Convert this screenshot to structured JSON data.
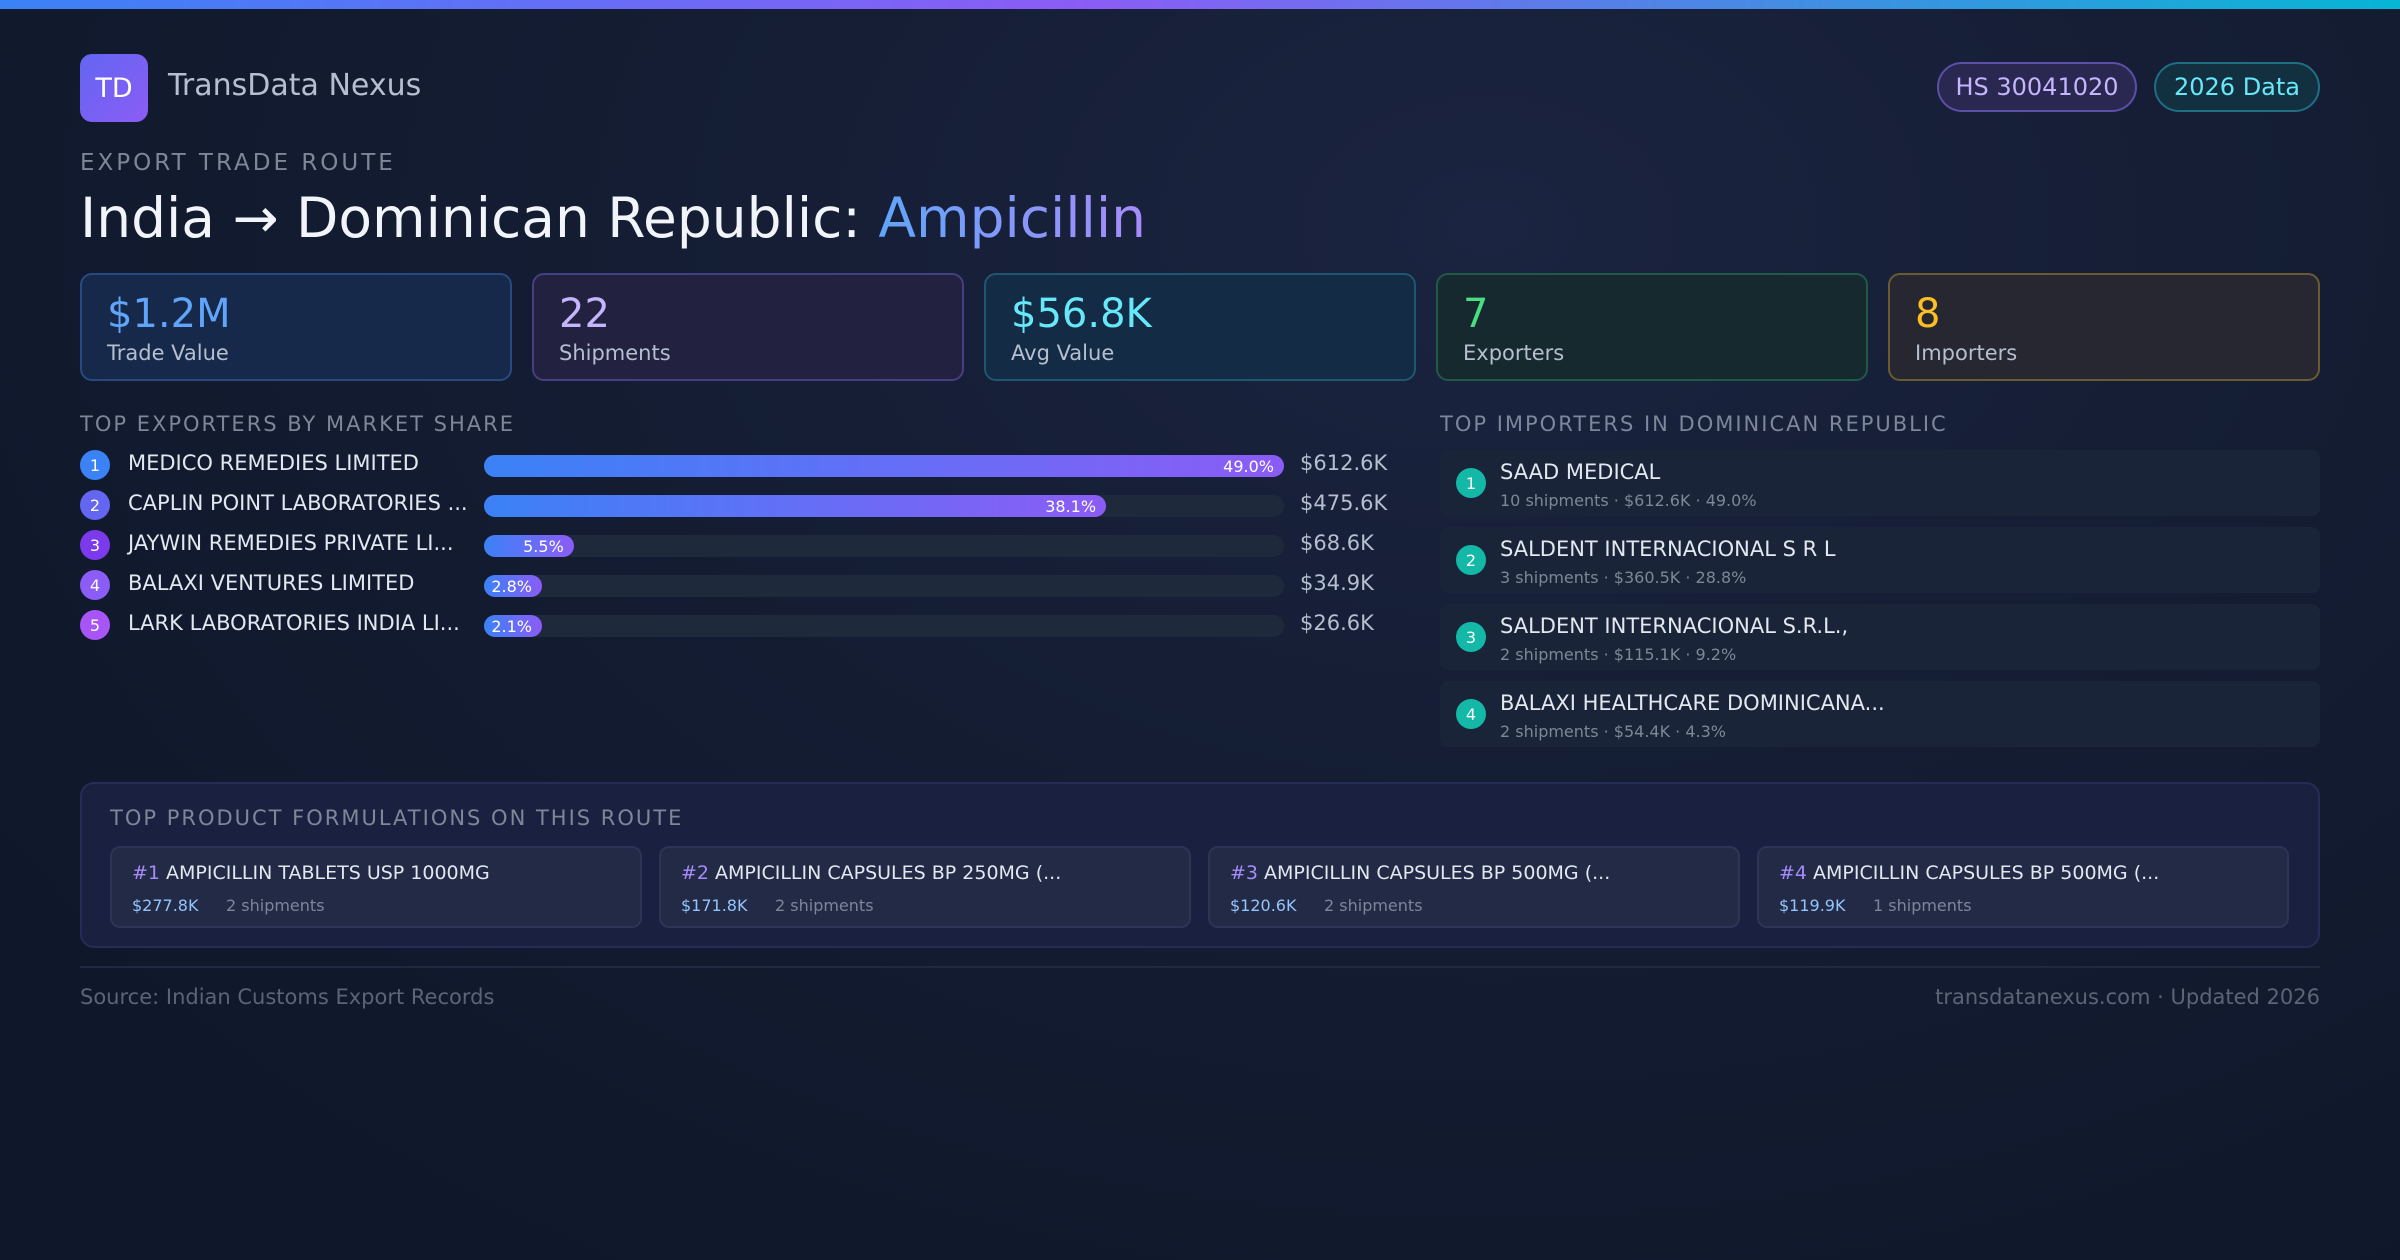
{
  "brand": {
    "logo": "TD",
    "name": "TransData Nexus"
  },
  "badges": {
    "hs_code": "HS 30041020",
    "year": "2026 Data"
  },
  "header": {
    "eyebrow": "EXPORT TRADE ROUTE",
    "route": "India → Dominican Republic: ",
    "product": "Ampicillin"
  },
  "stats": [
    {
      "value": "$1.2M",
      "label": "Trade Value"
    },
    {
      "value": "22",
      "label": "Shipments"
    },
    {
      "value": "$56.8K",
      "label": "Avg Value"
    },
    {
      "value": "7",
      "label": "Exporters"
    },
    {
      "value": "8",
      "label": "Importers"
    }
  ],
  "exporters_title": "TOP EXPORTERS BY MARKET SHARE",
  "exporters": [
    {
      "rank": "1",
      "name": "MEDICO REMEDIES LIMITED",
      "share": 49.0,
      "share_label": "49.0%",
      "value": "$612.6K"
    },
    {
      "rank": "2",
      "name": "CAPLIN POINT LABORATORIES ...",
      "share": 38.1,
      "share_label": "38.1%",
      "value": "$475.6K"
    },
    {
      "rank": "3",
      "name": "JAYWIN REMEDIES PRIVATE LI...",
      "share": 5.5,
      "share_label": "5.5%",
      "value": "$68.6K"
    },
    {
      "rank": "4",
      "name": "BALAXI VENTURES LIMITED",
      "share": 2.8,
      "share_label": "2.8%",
      "value": "$34.9K"
    },
    {
      "rank": "5",
      "name": "LARK LABORATORIES INDIA LI...",
      "share": 2.1,
      "share_label": "2.1%",
      "value": "$26.6K"
    }
  ],
  "rank_colors": [
    "#3b82f6",
    "#6366f1",
    "#7c3aed",
    "#8b5cf6",
    "#a855f7"
  ],
  "importers_title": "TOP IMPORTERS IN DOMINICAN REPUBLIC",
  "importers": [
    {
      "rank": "1",
      "name": "SAAD MEDICAL",
      "meta": "10 shipments · $612.6K · 49.0%"
    },
    {
      "rank": "2",
      "name": "SALDENT INTERNACIONAL S R L",
      "meta": "3 shipments · $360.5K · 28.8%"
    },
    {
      "rank": "3",
      "name": "SALDENT INTERNACIONAL S.R.L.,",
      "meta": "2 shipments · $115.1K · 9.2%"
    },
    {
      "rank": "4",
      "name": "BALAXI HEALTHCARE DOMINICANA...",
      "meta": "2 shipments · $54.4K · 4.3%"
    }
  ],
  "products_title": "TOP PRODUCT FORMULATIONS ON THIS ROUTE",
  "products": [
    {
      "index": "#1",
      "name": "AMPICILLIN TABLETS USP 1000MG",
      "value": "$277.8K",
      "shipments": "2 shipments"
    },
    {
      "index": "#2",
      "name": "AMPICILLIN CAPSULES BP 250MG (...",
      "value": "$171.8K",
      "shipments": "2 shipments"
    },
    {
      "index": "#3",
      "name": "AMPICILLIN CAPSULES BP 500MG (...",
      "value": "$120.6K",
      "shipments": "2 shipments"
    },
    {
      "index": "#4",
      "name": "AMPICILLIN CAPSULES BP 500MG (...",
      "value": "$119.9K",
      "shipments": "1 shipments"
    }
  ],
  "footer": {
    "source": "Source: Indian Customs Export Records",
    "site": "transdatanexus.com · Updated 2026"
  }
}
